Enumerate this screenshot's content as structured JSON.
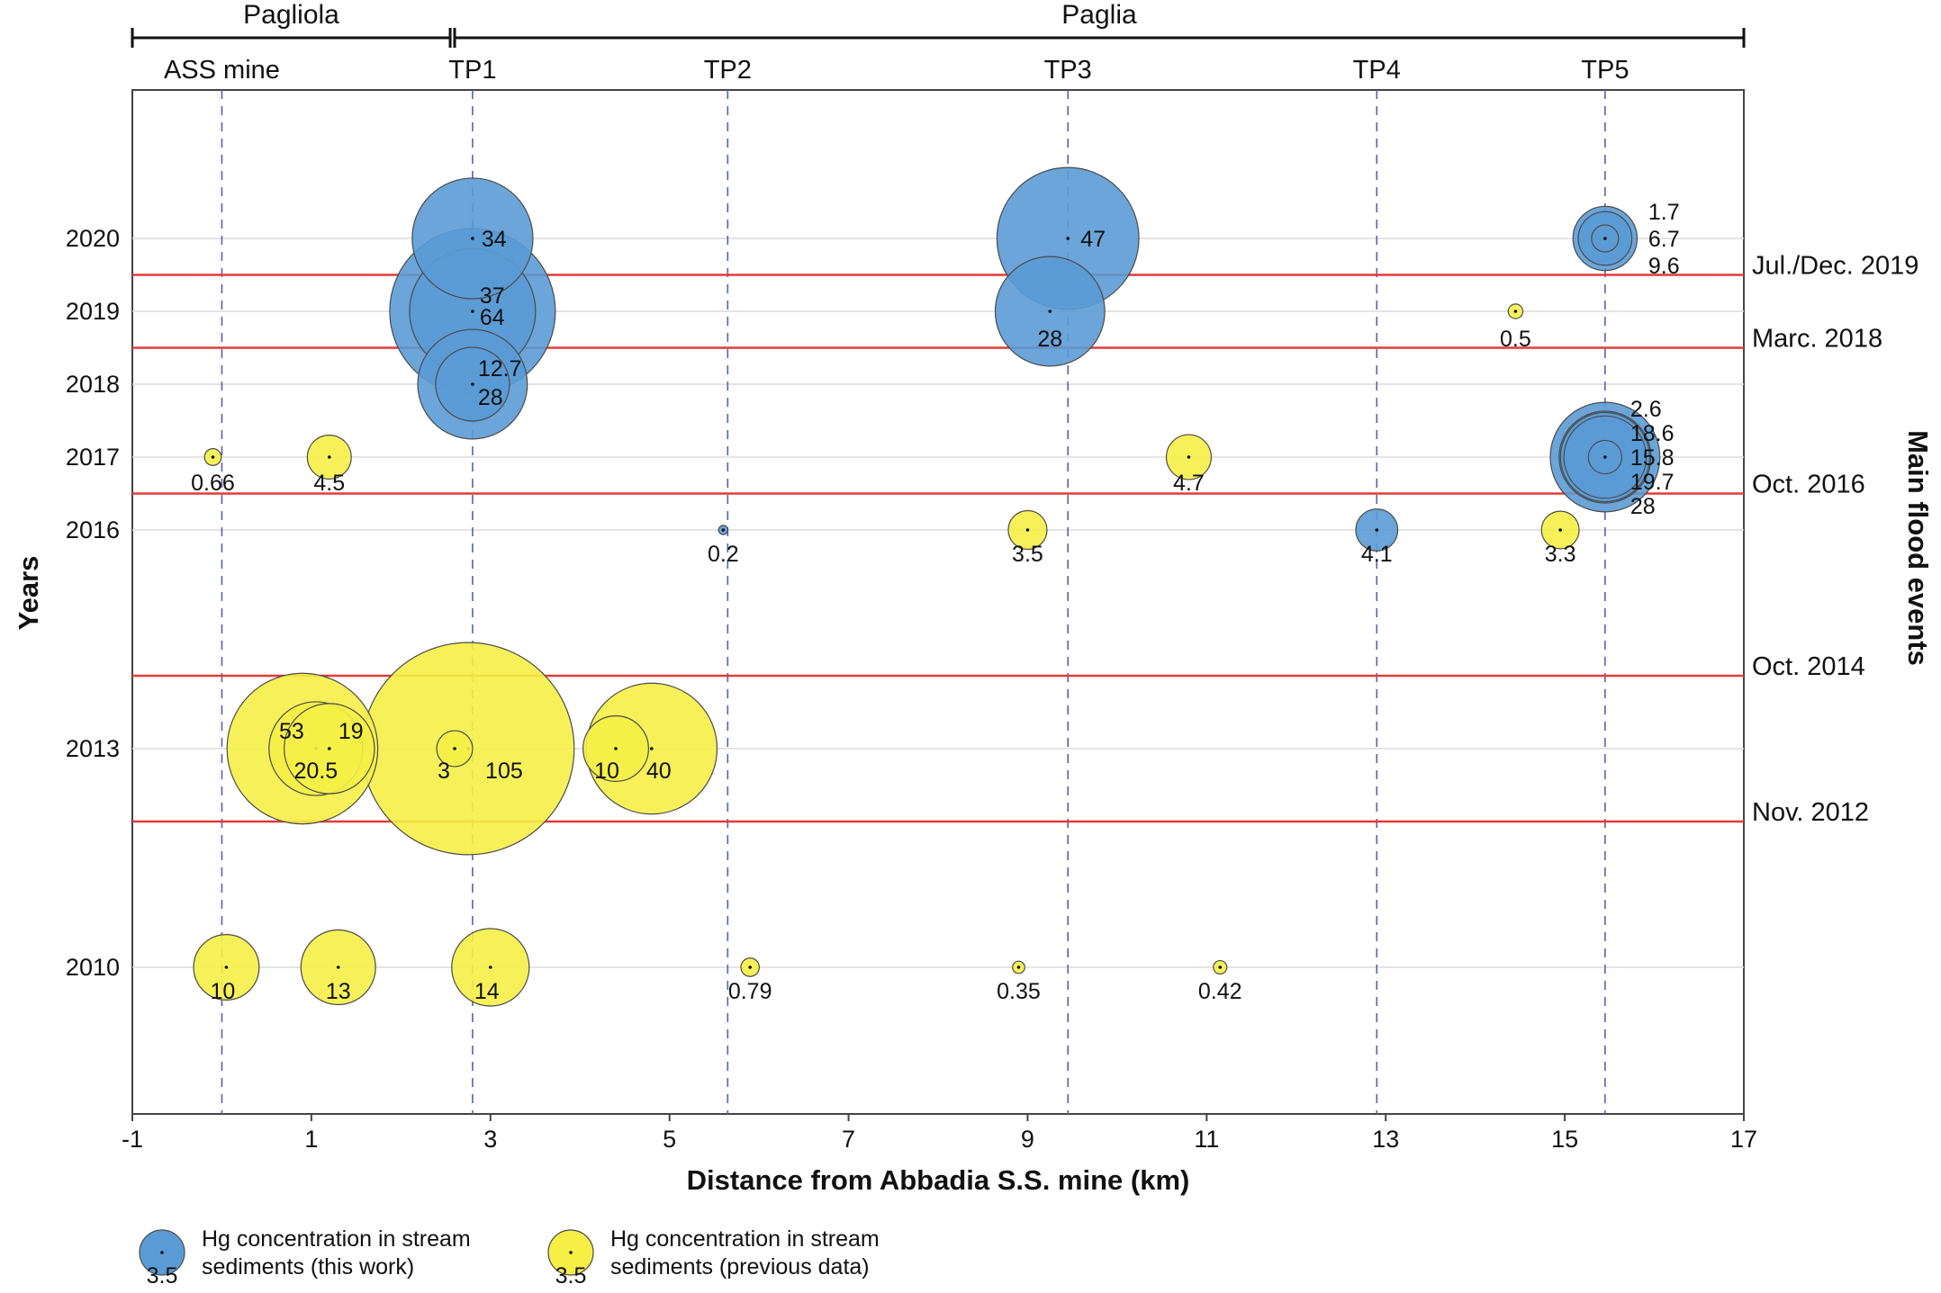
{
  "chart_data": {
    "type": "scatter",
    "subtype": "bubble",
    "xlabel": "Distance from Abbadia S.S. mine (km)",
    "ylabel": "Years",
    "right_label": "Main flood events",
    "xlim": [
      -1,
      17
    ],
    "ylim": [
      2008,
      2022
    ],
    "x_ticks": [
      -1,
      1,
      3,
      5,
      7,
      9,
      11,
      13,
      15,
      17
    ],
    "y_ticks": [
      2010,
      2013,
      2016,
      2017,
      2018,
      2019,
      2020
    ],
    "grid": "horizontal",
    "sections": [
      {
        "label": "Pagliola",
        "x_start": -1,
        "x_end": 2.55
      },
      {
        "label": "Paglia",
        "x_start": 2.6,
        "x_end": 17
      }
    ],
    "sites": [
      {
        "label": "ASS mine",
        "x": 0
      },
      {
        "label": "TP1",
        "x": 2.8
      },
      {
        "label": "TP2",
        "x": 5.65
      },
      {
        "label": "TP3",
        "x": 9.45
      },
      {
        "label": "TP4",
        "x": 12.9
      },
      {
        "label": "TP5",
        "x": 15.45
      }
    ],
    "flood_events": [
      {
        "label": "Jul./Dec. 2019",
        "year": 2019.5
      },
      {
        "label": "Marc. 2018",
        "year": 2018.5
      },
      {
        "label": "Oct. 2016",
        "year": 2016.5
      },
      {
        "label": "Oct. 2014",
        "year": 2014
      },
      {
        "label": "Nov. 2012",
        "year": 2012
      }
    ],
    "series": [
      {
        "name": "Hg concentration in stream sediments (this work)",
        "color": "#5b9bd5",
        "points": [
          {
            "x": 2.8,
            "y": 2020,
            "value": 34,
            "label": "34"
          },
          {
            "x": 2.8,
            "y": 2019,
            "value": 64,
            "label": "64"
          },
          {
            "x": 2.8,
            "y": 2019,
            "value": 37,
            "label": "37"
          },
          {
            "x": 2.8,
            "y": 2018,
            "value": 28,
            "label": "28"
          },
          {
            "x": 2.8,
            "y": 2018,
            "value": 12.7,
            "label": "12.7"
          },
          {
            "x": 9.45,
            "y": 2020,
            "value": 47,
            "label": "47"
          },
          {
            "x": 9.25,
            "y": 2019,
            "value": 28,
            "label": "28"
          },
          {
            "x": 15.45,
            "y": 2020,
            "value": 9.6,
            "label": "9.6"
          },
          {
            "x": 15.45,
            "y": 2020,
            "value": 6.7,
            "label": "6.7"
          },
          {
            "x": 15.45,
            "y": 2020,
            "value": 1.7,
            "label": "1.7"
          },
          {
            "x": 15.45,
            "y": 2017,
            "value": 28,
            "label": "28"
          },
          {
            "x": 15.45,
            "y": 2017,
            "value": 19.7,
            "label": "19.7"
          },
          {
            "x": 15.45,
            "y": 2017,
            "value": 18.6,
            "label": "18.6"
          },
          {
            "x": 15.45,
            "y": 2017,
            "value": 15.8,
            "label": "15.8"
          },
          {
            "x": 15.45,
            "y": 2017,
            "value": 2.6,
            "label": "2.6"
          },
          {
            "x": 5.6,
            "y": 2016,
            "value": 0.2,
            "label": "0.2"
          },
          {
            "x": 12.9,
            "y": 2016,
            "value": 4.1,
            "label": "4.1"
          }
        ]
      },
      {
        "name": "Hg concentration in stream sediments (previous data)",
        "color": "#f5ef46",
        "points": [
          {
            "x": -0.1,
            "y": 2017,
            "value": 0.66,
            "label": "0.66"
          },
          {
            "x": 1.2,
            "y": 2017,
            "value": 4.5,
            "label": "4.5"
          },
          {
            "x": 10.8,
            "y": 2017,
            "value": 4.7,
            "label": "4.7"
          },
          {
            "x": 14.45,
            "y": 2019,
            "value": 0.5,
            "label": "0.5"
          },
          {
            "x": 9.0,
            "y": 2016,
            "value": 3.5,
            "label": "3.5"
          },
          {
            "x": 14.95,
            "y": 2016,
            "value": 3.3,
            "label": "3.3"
          },
          {
            "x": 2.75,
            "y": 2013,
            "value": 105,
            "label": "105"
          },
          {
            "x": 0.9,
            "y": 2013,
            "value": 53,
            "label": "53"
          },
          {
            "x": 4.8,
            "y": 2013,
            "value": 40,
            "label": "40"
          },
          {
            "x": 1.05,
            "y": 2013,
            "value": 20.5,
            "label": "20.5"
          },
          {
            "x": 1.2,
            "y": 2013,
            "value": 19,
            "label": "19"
          },
          {
            "x": 4.4,
            "y": 2013,
            "value": 10,
            "label": "10"
          },
          {
            "x": 2.6,
            "y": 2013,
            "value": 3,
            "label": "3"
          },
          {
            "x": 0.05,
            "y": 2010,
            "value": 10,
            "label": "10"
          },
          {
            "x": 1.3,
            "y": 2010,
            "value": 13,
            "label": "13"
          },
          {
            "x": 3.0,
            "y": 2010,
            "value": 14,
            "label": "14"
          },
          {
            "x": 5.9,
            "y": 2010,
            "value": 0.79,
            "label": "0.79"
          },
          {
            "x": 8.9,
            "y": 2010,
            "value": 0.35,
            "label": "0.35"
          },
          {
            "x": 11.15,
            "y": 2010,
            "value": 0.42,
            "label": "0.42"
          }
        ]
      }
    ],
    "legend": {
      "placement": "bottom-left",
      "example_value": "3.5",
      "entries": [
        {
          "line1": "Hg concentration in stream",
          "line2": "sediments (this work)",
          "color": "#5b9bd5"
        },
        {
          "line1": "Hg concentration in stream",
          "line2": "sediments (previous data)",
          "color": "#f5ef46"
        }
      ]
    }
  }
}
